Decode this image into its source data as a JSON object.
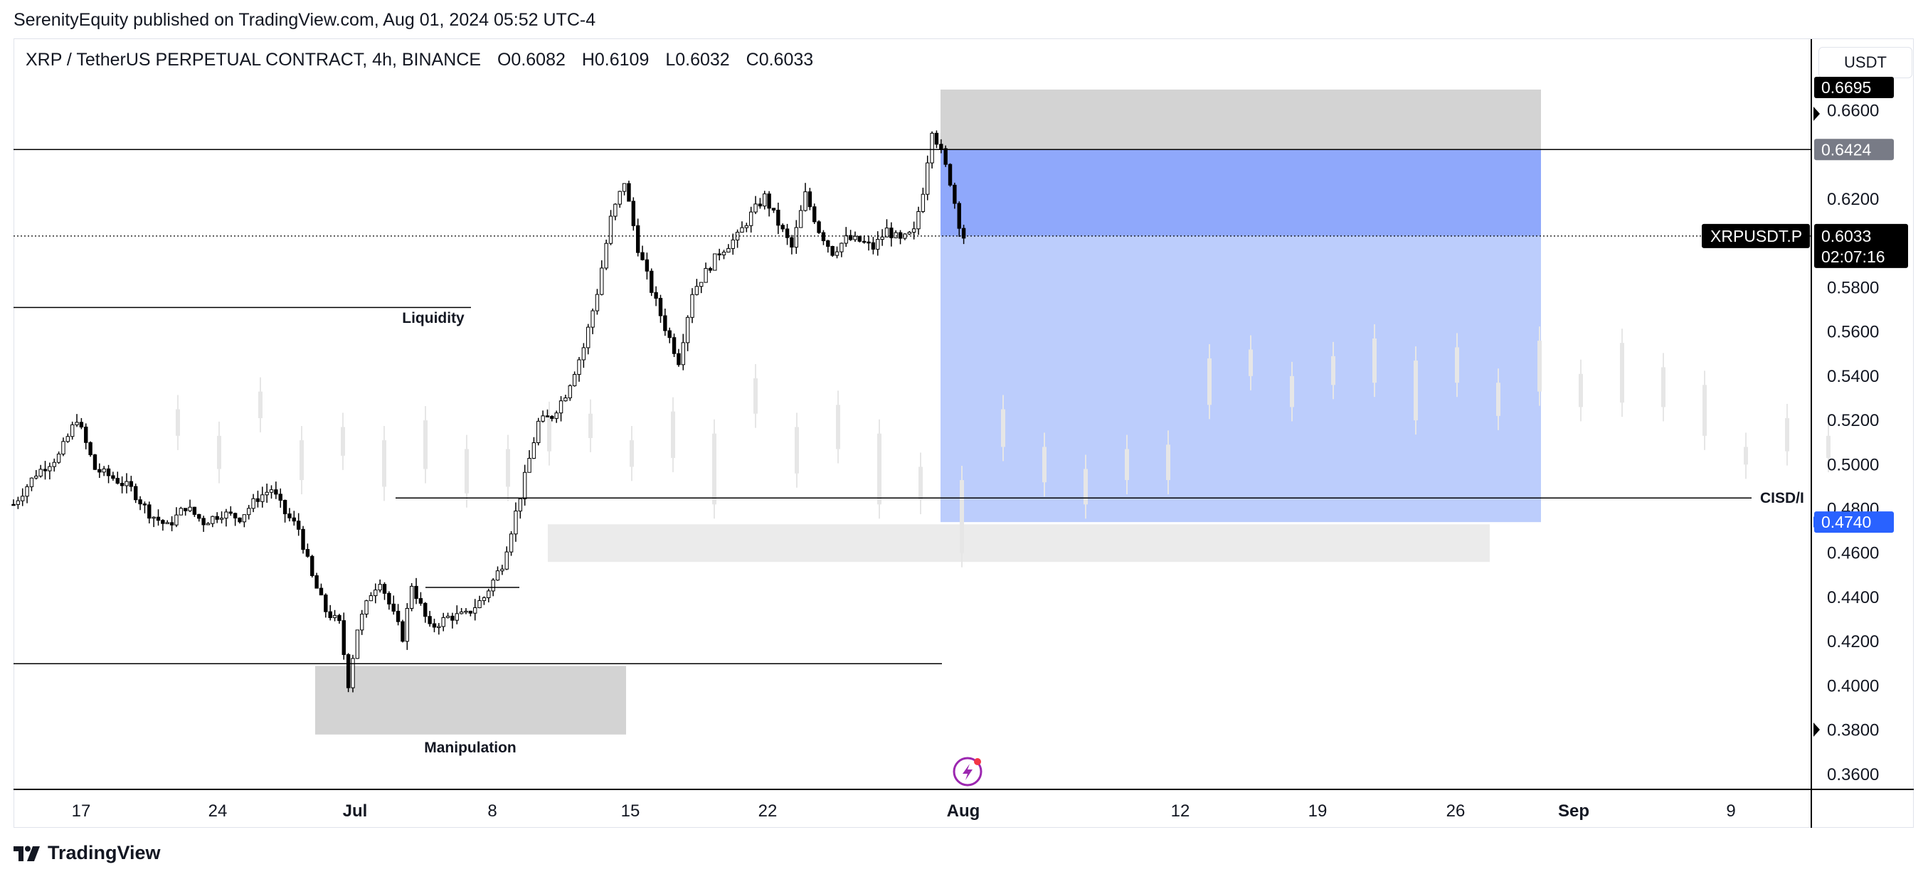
{
  "caption": "SerenityEquity published on TradingView.com, Aug 01, 2024 05:52 UTC-4",
  "symbol": {
    "name": "XRP / TetherUS PERPETUAL CONTRACT, 4h, BINANCE",
    "open": "O0.6082",
    "high": "H0.6109",
    "low": "L0.6032",
    "close": "C0.6033"
  },
  "currency": "USDT",
  "footer_brand": "TradingView",
  "chart_data": {
    "type": "candlestick",
    "ylim": [
      0.35,
      0.685
    ],
    "y_ticks": [
      "0.6600",
      "0.6200",
      "0.5800",
      "0.5600",
      "0.5400",
      "0.5200",
      "0.5000",
      "0.4800",
      "0.4600",
      "0.4400",
      "0.4200",
      "0.4000",
      "0.3800",
      "0.3600"
    ],
    "x_ticks": [
      {
        "label": "17",
        "bold": false
      },
      {
        "label": "24",
        "bold": false
      },
      {
        "label": "Jul",
        "bold": true
      },
      {
        "label": "8",
        "bold": false
      },
      {
        "label": "15",
        "bold": false
      },
      {
        "label": "22",
        "bold": false
      },
      {
        "label": "Aug",
        "bold": true
      },
      {
        "label": "12",
        "bold": false
      },
      {
        "label": "19",
        "bold": false
      },
      {
        "label": "26",
        "bold": false
      },
      {
        "label": "Sep",
        "bold": true
      },
      {
        "label": "9",
        "bold": false
      }
    ],
    "price_tags": {
      "top": "0.6695",
      "resistance": "0.6424",
      "current_symbol": "XRPUSDT.P",
      "current": "0.6033",
      "countdown": "02:07:16",
      "target": "0.4740"
    },
    "levels": {
      "resistance": 0.6424,
      "current": 0.6033,
      "liquidity": 0.571,
      "cisd": 0.4849,
      "manipulation_line": 0.41
    },
    "zones": {
      "stop_zone": [
        0.6424,
        0.6695
      ],
      "profit_zone": [
        0.474,
        0.6033
      ],
      "entry_zone": [
        0.6033,
        0.6424
      ],
      "fvg": [
        0.456,
        0.473
      ],
      "manipulation_box": [
        0.378,
        0.409
      ]
    },
    "labels": {
      "liquidity": "Liquidity",
      "manipulation": "Manipulation",
      "cisd": "CISD/I"
    },
    "colors": {
      "candle": "#000000",
      "ghost": "#e6e6e6",
      "stop_zone": "#d3d3d3",
      "profit_zone": "#bccdfc",
      "entry_zone": "#8fa8fb",
      "fvg": "#ebebeb",
      "price_tag_dark": "#000000",
      "price_tag_grey": "#787b86",
      "price_tag_blue": "#2962ff"
    },
    "path": [
      [
        0,
        0.482
      ],
      [
        5,
        0.496
      ],
      [
        10,
        0.504
      ],
      [
        14,
        0.521
      ],
      [
        18,
        0.498
      ],
      [
        22,
        0.494
      ],
      [
        26,
        0.489
      ],
      [
        30,
        0.478
      ],
      [
        34,
        0.472
      ],
      [
        38,
        0.481
      ],
      [
        42,
        0.474
      ],
      [
        46,
        0.478
      ],
      [
        50,
        0.476
      ],
      [
        54,
        0.485
      ],
      [
        57,
        0.489
      ],
      [
        60,
        0.478
      ],
      [
        63,
        0.471
      ],
      [
        66,
        0.449
      ],
      [
        69,
        0.434
      ],
      [
        72,
        0.428
      ],
      [
        74,
        0.401
      ],
      [
        76,
        0.426
      ],
      [
        79,
        0.442
      ],
      [
        81,
        0.448
      ],
      [
        83,
        0.437
      ],
      [
        86,
        0.422
      ],
      [
        88,
        0.446
      ],
      [
        92,
        0.426
      ],
      [
        96,
        0.431
      ],
      [
        100,
        0.432
      ],
      [
        104,
        0.44
      ],
      [
        108,
        0.455
      ],
      [
        112,
        0.486
      ],
      [
        116,
        0.519
      ],
      [
        119,
        0.522
      ],
      [
        122,
        0.532
      ],
      [
        126,
        0.553
      ],
      [
        129,
        0.578
      ],
      [
        132,
        0.611
      ],
      [
        135,
        0.628
      ],
      [
        138,
        0.598
      ],
      [
        141,
        0.579
      ],
      [
        144,
        0.562
      ],
      [
        147,
        0.547
      ],
      [
        150,
        0.578
      ],
      [
        153,
        0.587
      ],
      [
        156,
        0.596
      ],
      [
        160,
        0.603
      ],
      [
        163,
        0.613
      ],
      [
        166,
        0.621
      ],
      [
        169,
        0.609
      ],
      [
        172,
        0.598
      ],
      [
        175,
        0.622
      ],
      [
        178,
        0.606
      ],
      [
        181,
        0.596
      ],
      [
        184,
        0.602
      ],
      [
        187,
        0.601
      ],
      [
        190,
        0.598
      ],
      [
        193,
        0.606
      ],
      [
        196,
        0.601
      ],
      [
        199,
        0.605
      ],
      [
        201,
        0.624
      ],
      [
        203,
        0.652
      ],
      [
        205,
        0.641
      ],
      [
        207,
        0.628
      ],
      [
        209,
        0.609
      ],
      [
        210,
        0.603
      ]
    ],
    "ghost_ranges": [
      [
        0.513,
        0.525
      ],
      [
        0.498,
        0.513
      ],
      [
        0.521,
        0.533
      ],
      [
        0.493,
        0.511
      ],
      [
        0.504,
        0.517
      ],
      [
        0.49,
        0.511
      ],
      [
        0.498,
        0.52
      ],
      [
        0.487,
        0.507
      ],
      [
        0.49,
        0.507
      ],
      [
        0.506,
        0.522
      ],
      [
        0.512,
        0.523
      ],
      [
        0.499,
        0.511
      ],
      [
        0.503,
        0.524
      ],
      [
        0.482,
        0.514
      ],
      [
        0.523,
        0.539
      ],
      [
        0.496,
        0.517
      ],
      [
        0.507,
        0.527
      ],
      [
        0.482,
        0.514
      ],
      [
        0.484,
        0.499
      ],
      [
        0.46,
        0.493
      ],
      [
        0.508,
        0.525
      ],
      [
        0.492,
        0.508
      ],
      [
        0.482,
        0.498
      ],
      [
        0.493,
        0.507
      ],
      [
        0.493,
        0.509
      ],
      [
        0.527,
        0.548
      ],
      [
        0.54,
        0.552
      ],
      [
        0.526,
        0.54
      ],
      [
        0.536,
        0.549
      ],
      [
        0.537,
        0.557
      ],
      [
        0.52,
        0.547
      ],
      [
        0.537,
        0.553
      ],
      [
        0.522,
        0.537
      ],
      [
        0.533,
        0.556
      ],
      [
        0.526,
        0.541
      ],
      [
        0.528,
        0.555
      ],
      [
        0.526,
        0.544
      ],
      [
        0.513,
        0.536
      ],
      [
        0.5,
        0.508
      ],
      [
        0.506,
        0.521
      ],
      [
        0.503,
        0.513
      ]
    ]
  }
}
